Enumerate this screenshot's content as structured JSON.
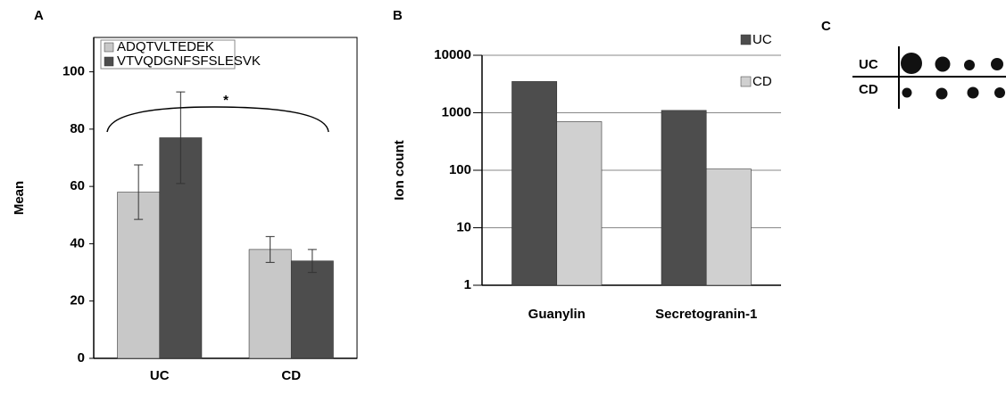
{
  "chart_data": [
    {
      "type": "bar",
      "panel": "A",
      "y_label": "Mean",
      "categories": [
        "UC",
        "CD"
      ],
      "series": [
        {
          "name": "ADQTVLTEDEK",
          "color": "#c8c8c8",
          "values": [
            58,
            38
          ],
          "errors": [
            9.5,
            4.5
          ]
        },
        {
          "name": "VTVQDGNFSFSLESVK",
          "color": "#4d4d4d",
          "values": [
            77,
            34
          ],
          "errors": [
            16,
            4
          ]
        }
      ],
      "ylim": [
        0,
        112
      ],
      "yticks": [
        0,
        20,
        40,
        60,
        80,
        100
      ],
      "legend": "top left",
      "annotation": "*"
    },
    {
      "type": "bar",
      "panel": "B",
      "y_label": "Ion count",
      "categories": [
        "Guanylin",
        "Secretogranin-1"
      ],
      "series": [
        {
          "name": "UC",
          "color": "#4d4d4d",
          "values": [
            3500,
            1100
          ]
        },
        {
          "name": "CD",
          "color": "#d0d0d0",
          "values": [
            700,
            105
          ]
        }
      ],
      "ylim": [
        1,
        10000
      ],
      "yticks": [
        1,
        10,
        100,
        1000,
        10000
      ],
      "log_y": true,
      "grid": true,
      "legend": "top right"
    }
  ],
  "blot": {
    "panel": "C",
    "rows": [
      "UC",
      "CD"
    ]
  }
}
